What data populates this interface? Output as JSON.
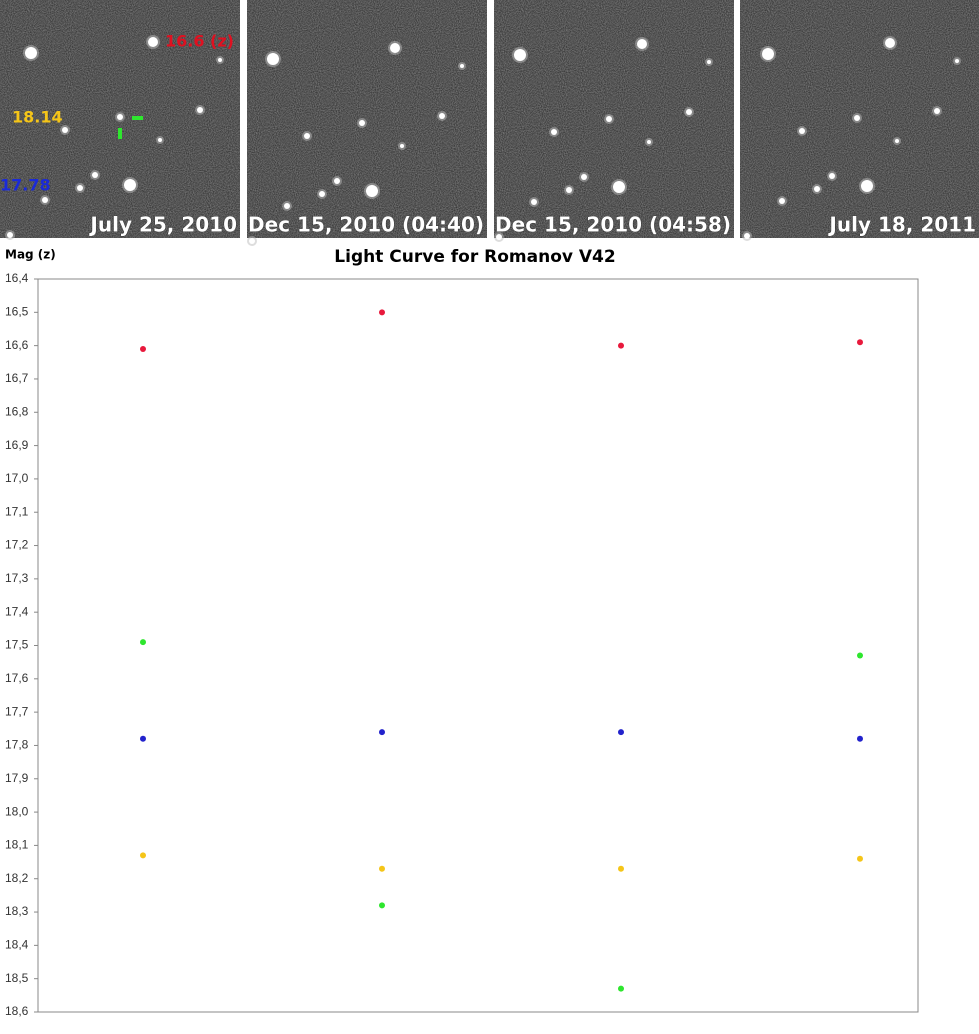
{
  "images": {
    "panels": [
      {
        "date": "July 25, 2010"
      },
      {
        "date": "Dec 15, 2010 (04:40)"
      },
      {
        "date": "Dec 15, 2010 (04:58)"
      },
      {
        "date": "July 18, 2011"
      }
    ],
    "annotations": [
      {
        "text": "16.6 (z)",
        "color": "#e01020"
      },
      {
        "text": "18.14",
        "color": "#f5c518"
      },
      {
        "text": "17.78",
        "color": "#1a2ad8"
      }
    ]
  },
  "chart_data": {
    "type": "scatter",
    "title": "Light Curve for Romanov V42",
    "y_label": "Mag (z)",
    "categories": [
      null,
      null,
      null,
      null
    ],
    "series": [
      {
        "color": "#e8193c",
        "values": [
          16.61,
          16.5,
          16.6,
          16.59
        ]
      },
      {
        "color": "#2ee62e",
        "values": [
          17.49,
          18.28,
          18.53,
          17.53
        ]
      },
      {
        "color": "#2222cc",
        "values": [
          17.78,
          17.76,
          17.76,
          17.78
        ]
      },
      {
        "color": "#f5c518",
        "values": [
          18.13,
          18.17,
          18.17,
          18.14
        ]
      }
    ],
    "ylim": [
      16.4,
      18.6
    ],
    "y_reversed": true,
    "yticks": [
      {
        "value": 16.4,
        "label": "16,4"
      },
      {
        "value": 16.5,
        "label": "16,5"
      },
      {
        "value": 16.6,
        "label": "16,6"
      },
      {
        "value": 16.7,
        "label": "16,7"
      },
      {
        "value": 16.8,
        "label": "16,8"
      },
      {
        "value": 16.9,
        "label": "16,9"
      },
      {
        "value": 17.0,
        "label": "17,0"
      },
      {
        "value": 17.1,
        "label": "17,1"
      },
      {
        "value": 17.2,
        "label": "17,2"
      },
      {
        "value": 17.3,
        "label": "17,3"
      },
      {
        "value": 17.4,
        "label": "17,4"
      },
      {
        "value": 17.5,
        "label": "17,5"
      },
      {
        "value": 17.6,
        "label": "17,6"
      },
      {
        "value": 17.7,
        "label": "17,7"
      },
      {
        "value": 17.8,
        "label": "17,8"
      },
      {
        "value": 17.9,
        "label": "17,9"
      },
      {
        "value": 18.0,
        "label": "18,0"
      },
      {
        "value": 18.1,
        "label": "18,1"
      },
      {
        "value": 18.2,
        "label": "18,2"
      },
      {
        "value": 18.3,
        "label": "18,3"
      },
      {
        "value": 18.4,
        "label": "18,4"
      },
      {
        "value": 18.5,
        "label": "18,5"
      },
      {
        "value": 18.6,
        "label": "18,6"
      }
    ],
    "grid": false
  }
}
